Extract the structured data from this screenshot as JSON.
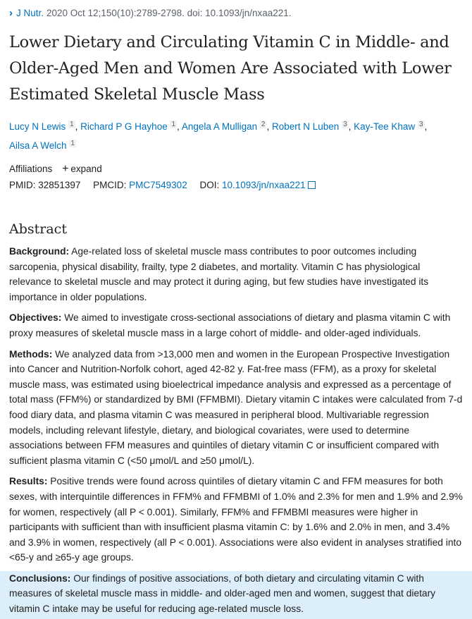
{
  "citation": {
    "journal": "J Nutr.",
    "details": "2020 Oct 12;150(10):2789-2798. doi: 10.1093/jn/nxaa221."
  },
  "title": "Lower Dietary and Circulating Vitamin C in Middle- and Older-Aged Men and Women Are Associated with Lower Estimated Skeletal Muscle Mass",
  "authors": [
    {
      "name": "Lucy N Lewis",
      "aff": "1"
    },
    {
      "name": "Richard P G Hayhoe",
      "aff": "1"
    },
    {
      "name": "Angela A Mulligan",
      "aff": "2"
    },
    {
      "name": "Robert N Luben",
      "aff": "3"
    },
    {
      "name": "Kay-Tee Khaw",
      "aff": "3"
    },
    {
      "name": "Ailsa A Welch",
      "aff": "1"
    }
  ],
  "affiliations": {
    "label": "Affiliations",
    "expand": "expand"
  },
  "ids": {
    "pmid_label": "PMID:",
    "pmid": "32851397",
    "pmcid_label": "PMCID:",
    "pmcid": "PMC7549302",
    "doi_label": "DOI:",
    "doi": "10.1093/jn/nxaa221"
  },
  "abstract": {
    "heading": "Abstract",
    "sections": [
      {
        "label": "Background:",
        "text": " Age-related loss of skeletal muscle mass contributes to poor outcomes including sarcopenia, physical disability, frailty, type 2 diabetes, and mortality. Vitamin C has physiological relevance to skeletal muscle and may protect it during aging, but few studies have investigated its importance in older populations."
      },
      {
        "label": "Objectives:",
        "text": " We aimed to investigate cross-sectional associations of dietary and plasma vitamin C with proxy measures of skeletal muscle mass in a large cohort of middle- and older-aged individuals."
      },
      {
        "label": "Methods:",
        "text": " We analyzed data from >13,000 men and women in the European Prospective Investigation into Cancer and Nutrition-Norfolk cohort, aged 42-82 y. Fat-free mass (FFM), as a proxy for skeletal muscle mass, was estimated using bioelectrical impedance analysis and expressed as a percentage of total mass (FFM%) or standardized by BMI (FFMBMI). Dietary vitamin C intakes were calculated from 7-d food diary data, and plasma vitamin C was measured in peripheral blood. Multivariable regression models, including relevant lifestyle, dietary, and biological covariates, were used to determine associations between FFM measures and quintiles of dietary vitamin C or insufficient compared with sufficient plasma vitamin C (<50 μmol/L and ≥50 μmol/L)."
      },
      {
        "label": "Results:",
        "text": " Positive trends were found across quintiles of dietary vitamin C and FFM measures for both sexes, with interquintile differences in FFM% and FFMBMI of 1.0% and 2.3% for men and 1.9% and 2.9% for women, respectively (all P < 0.001). Similarly, FFM% and FFMBMI measures were higher in participants with sufficient than with insufficient plasma vitamin C: by 1.6% and 2.0% in men, and 3.4% and 3.9% in women, respectively (all P < 0.001). Associations were also evident in analyses stratified into <65-y and ≥65-y age groups."
      },
      {
        "label": "Conclusions:",
        "text": " Our findings of positive associations, of both dietary and circulating vitamin C with measures of skeletal muscle mass in middle- and older-aged men and women, suggest that dietary vitamin C intake may be useful for reducing age-related muscle loss."
      }
    ]
  }
}
